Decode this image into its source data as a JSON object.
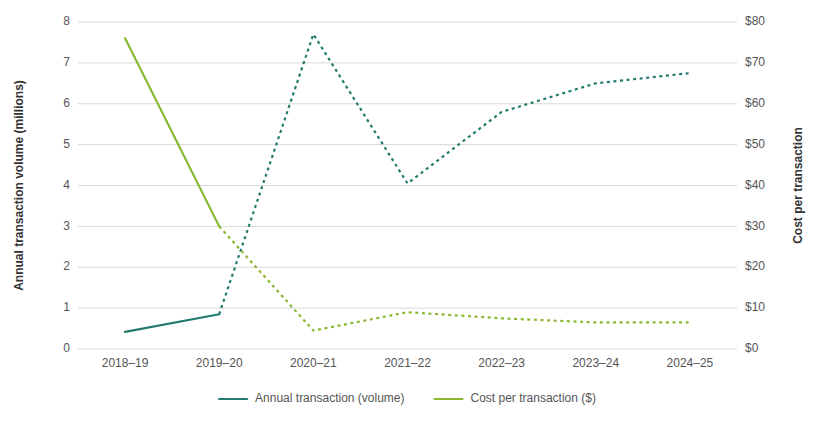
{
  "chart_data": {
    "type": "line",
    "categories": [
      "2018–19",
      "2019–20",
      "2020–21",
      "2021–22",
      "2022–23",
      "2023–24",
      "2024–25"
    ],
    "series": [
      {
        "name": "Annual transaction (volume)",
        "color": "#237a6e",
        "line_style": "solid",
        "axis": "y",
        "values": [
          0.42,
          0.85,
          null,
          null,
          null,
          null,
          null
        ]
      },
      {
        "color": "#237a6e",
        "line_style": "dotted",
        "axis": "y",
        "values": [
          null,
          0.85,
          7.7,
          4.05,
          5.8,
          6.5,
          6.75
        ]
      },
      {
        "name": "Cost per transaction ($)",
        "color": "#8ab832",
        "line_style": "solid",
        "axis": "y2",
        "values": [
          76.0,
          30.0,
          null,
          null,
          null,
          null,
          null
        ]
      },
      {
        "color": "#8ab832",
        "line_style": "dotted",
        "axis": "y2",
        "values": [
          null,
          30.0,
          4.5,
          9.0,
          7.5,
          6.5,
          6.5
        ]
      }
    ],
    "ylabel": "Annual transaction volume (millions)",
    "y2label": "Cost per transaction",
    "ylim": [
      0,
      8
    ],
    "yticks": [
      0,
      1,
      2,
      3,
      4,
      5,
      6,
      7,
      8
    ],
    "y2lim": [
      0,
      80
    ],
    "y2ticks": [
      {
        "value": 0,
        "label": "$0"
      },
      {
        "value": 10,
        "label": "$10"
      },
      {
        "value": 20,
        "label": "$20"
      },
      {
        "value": 30,
        "label": "$30"
      },
      {
        "value": 40,
        "label": "$40"
      },
      {
        "value": 50,
        "label": "$50"
      },
      {
        "value": 60,
        "label": "$60"
      },
      {
        "value": 70,
        "label": "$70"
      },
      {
        "value": 80,
        "label": "$80"
      }
    ],
    "grid": true,
    "legend": "bottom"
  }
}
